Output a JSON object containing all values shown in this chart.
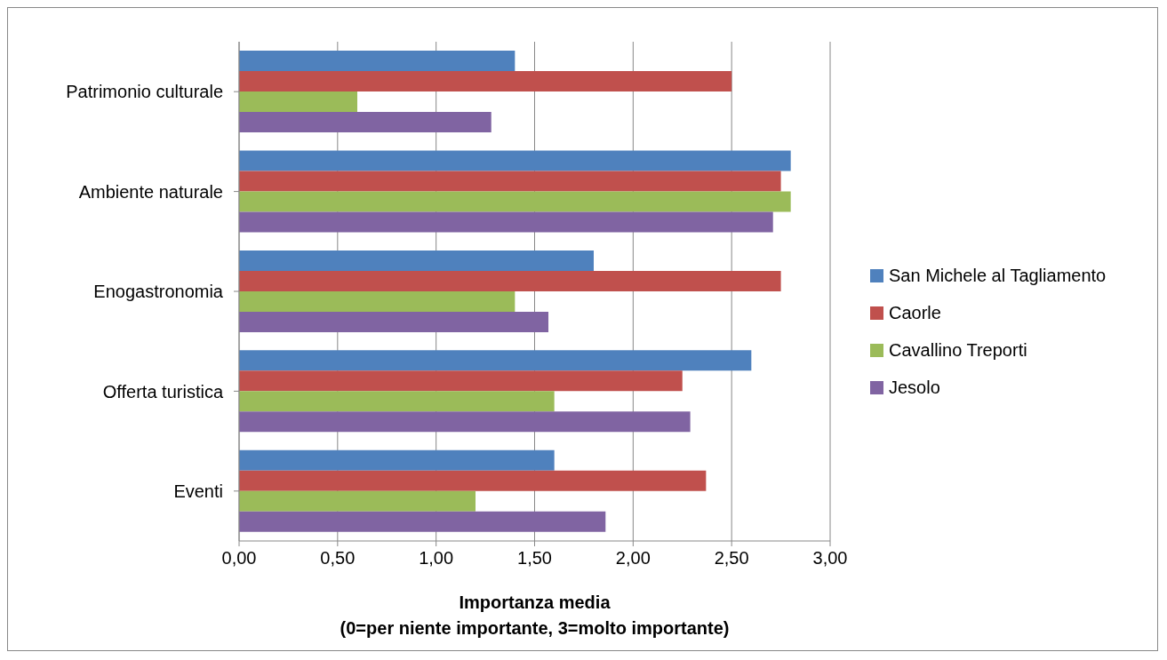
{
  "chart_data": {
    "type": "bar",
    "orientation": "horizontal",
    "xlabel": "Importanza media\n(0=per niente importante, 3=molto importante)",
    "categories": [
      "Patrimonio culturale",
      "Ambiente naturale",
      "Enogastronomia",
      "Offerta turistica",
      "Eventi"
    ],
    "series": [
      {
        "name": "San Michele al Tagliamento",
        "color": "#4f81bd",
        "values": [
          1.4,
          2.8,
          1.8,
          2.6,
          1.6
        ]
      },
      {
        "name": "Caorle",
        "color": "#c0504d",
        "values": [
          2.5,
          2.75,
          2.75,
          2.25,
          2.37
        ]
      },
      {
        "name": "Cavallino Treporti",
        "color": "#9bbb59",
        "values": [
          0.6,
          2.8,
          1.4,
          1.6,
          1.2
        ]
      },
      {
        "name": "Jesolo",
        "color": "#8064a2",
        "values": [
          1.28,
          2.71,
          1.57,
          2.29,
          1.86
        ]
      }
    ],
    "xlim": [
      0,
      3
    ],
    "xticks": [
      {
        "value": 0,
        "label": "0,00"
      },
      {
        "value": 0.5,
        "label": "0,50"
      },
      {
        "value": 1,
        "label": "1,00"
      },
      {
        "value": 1.5,
        "label": "1,50"
      },
      {
        "value": 2,
        "label": "2,00"
      },
      {
        "value": 2.5,
        "label": "2,50"
      },
      {
        "value": 3,
        "label": "3,00"
      }
    ],
    "grid": "x",
    "legend": "right"
  }
}
